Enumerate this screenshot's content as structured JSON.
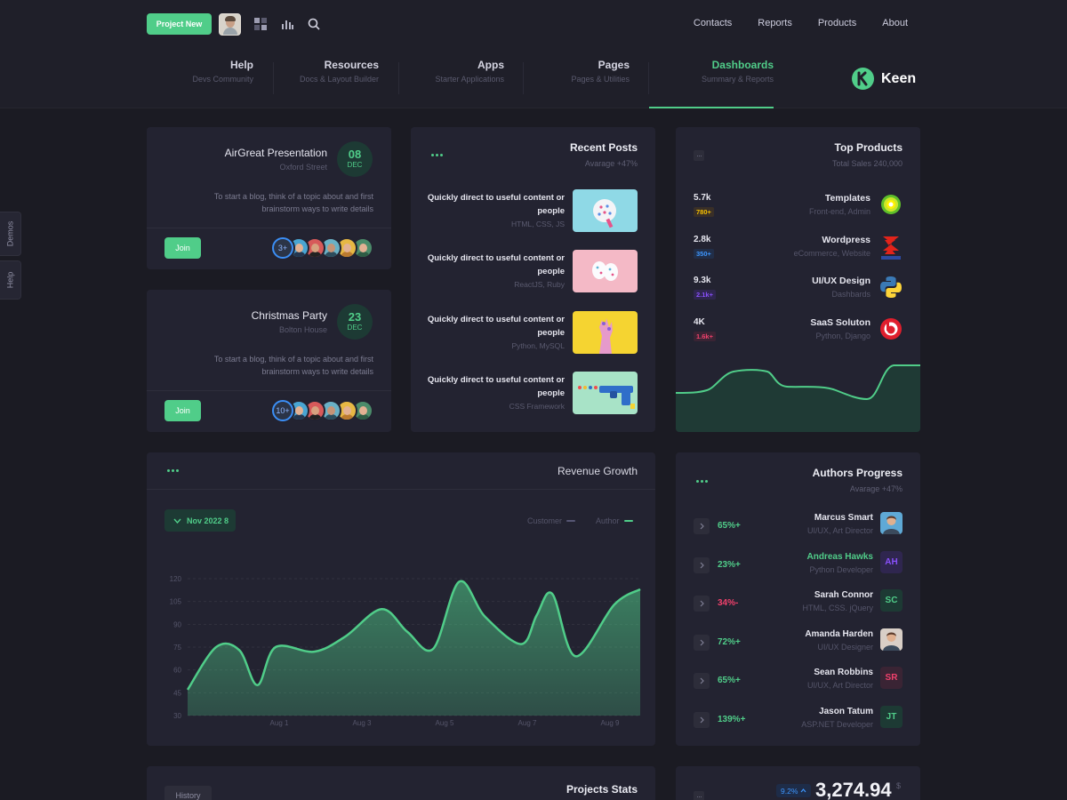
{
  "header": {
    "project_new": "Project New",
    "nav": [
      "Contacts",
      "Reports",
      "Products",
      "About"
    ],
    "menu": [
      {
        "title": "Help",
        "subtitle": "Devs Community"
      },
      {
        "title": "Resources",
        "subtitle": "Docs & Layout Builder"
      },
      {
        "title": "Apps",
        "subtitle": "Starter Applications"
      },
      {
        "title": "Pages",
        "subtitle": "Pages & Utilities"
      },
      {
        "title": "Dashboards",
        "subtitle": "Summary & Reports"
      }
    ],
    "active_menu": "Dashboards",
    "brand": "Keen"
  },
  "side_tabs": [
    "Demos",
    "Help"
  ],
  "events": [
    {
      "title": "AirGreat Presentation",
      "location": "Oxford Street",
      "day": "08",
      "month": "DEC",
      "description": "To start a blog, think of a topic about and first brainstorm ways to write details",
      "join": "Join",
      "count": "3+"
    },
    {
      "title": "Christmas Party",
      "location": "Bolton House",
      "day": "23",
      "month": "DEC",
      "description": "To start a blog, think of a topic about and first brainstorm ways to write details",
      "join": "Join",
      "count": "10+"
    }
  ],
  "recent_posts": {
    "title": "Recent Posts",
    "subtitle": "Avarage +47%",
    "posts": [
      {
        "title": "Quickly direct to useful content or people",
        "tags": "HTML, CSS, JS"
      },
      {
        "title": "Quickly direct to useful content or people",
        "tags": "ReactJS, Ruby"
      },
      {
        "title": "Quickly direct to useful content or people",
        "tags": "Python, MySQL"
      },
      {
        "title": "Quickly direct to useful content or people",
        "tags": "CSS Framework"
      }
    ]
  },
  "top_products": {
    "title": "Top Products",
    "subtitle": "Total Sales 240,000",
    "items": [
      {
        "value": "5.7k",
        "badge": "780+",
        "badge_color": "#f6c000",
        "badge_bg": "#392f28",
        "name": "Templates",
        "desc": "Front-end, Admin",
        "logo": "bp-logo"
      },
      {
        "value": "2.8k",
        "badge": "350+",
        "badge_color": "#3e97ff",
        "badge_bg": "#212e48",
        "name": "Wordpress",
        "desc": "eCommerce, Website",
        "logo": "suzuki-logo"
      },
      {
        "value": "9.3k",
        "badge": "2.1k+",
        "badge_color": "#8950fc",
        "badge_bg": "#2f264f",
        "name": "UI/UX Design",
        "desc": "Dashbards",
        "logo": "python-logo"
      },
      {
        "value": "4K",
        "badge": "1.6k+",
        "badge_color": "#f1416c",
        "badge_bg": "#3a2434",
        "name": "SaaS Soluton",
        "desc": "Python, Django",
        "logo": "beats-logo"
      }
    ]
  },
  "revenue": {
    "title": "Revenue Growth",
    "date_button": "Nov 2022 8",
    "legend": [
      {
        "name": "Customer",
        "color": "#565674"
      },
      {
        "name": "Author",
        "color": "#50cd89"
      }
    ]
  },
  "chart_data": {
    "type": "area",
    "title": "Revenue Growth",
    "x_ticks": [
      "Aug 1",
      "Aug 3",
      "Aug 5",
      "Aug 7",
      "Aug 9"
    ],
    "y_ticks": [
      30,
      45,
      60,
      75,
      90,
      105,
      120
    ],
    "ylim": [
      30,
      120
    ],
    "grid": true,
    "series": [
      {
        "name": "Author",
        "color": "#50cd89",
        "x": [
          0,
          0.55,
          1.0,
          1.35,
          1.7,
          2.45,
          3.05,
          3.75,
          4.25,
          4.75,
          5.25,
          5.75,
          6.45,
          6.75,
          7.05,
          7.5,
          8.25,
          8.75
        ],
        "values": [
          47,
          75,
          73,
          50,
          75,
          72,
          82,
          100,
          85,
          74,
          118,
          95,
          77,
          96,
          110,
          69,
          103,
          113
        ]
      }
    ]
  },
  "authors": {
    "title": "Authors Progress",
    "subtitle": "Avarage +47%",
    "items": [
      {
        "pct": "65%+",
        "pct_color": "#50cd89",
        "name": "Marcus Smart",
        "name_color": "#e6e6ef",
        "role": "UI/UX, Art Director",
        "avatar": "",
        "av_bg": "#5fa9d6",
        "av_color": "#ffffff",
        "photo": true
      },
      {
        "pct": "23%+",
        "pct_color": "#50cd89",
        "name": "Andreas Hawks",
        "name_color": "#50cd89",
        "role": "Python Developer",
        "avatar": "AH",
        "av_bg": "#2f264f",
        "av_color": "#8950fc",
        "photo": false
      },
      {
        "pct": "34%-",
        "pct_color": "#f1416c",
        "name": "Sarah Connor",
        "name_color": "#e6e6ef",
        "role": "HTML, CSS. jQuery",
        "avatar": "SC",
        "av_bg": "#1d3a34",
        "av_color": "#50cd89",
        "photo": false
      },
      {
        "pct": "72%+",
        "pct_color": "#50cd89",
        "name": "Amanda Harden",
        "name_color": "#e6e6ef",
        "role": "UI/UX Designer",
        "avatar": "",
        "av_bg": "#d9cfc7",
        "av_color": "#ffffff",
        "photo": true
      },
      {
        "pct": "65%+",
        "pct_color": "#50cd89",
        "name": "Sean Robbins",
        "name_color": "#e6e6ef",
        "role": "UI/UX, Art Director",
        "avatar": "SR",
        "av_bg": "#3a2434",
        "av_color": "#f1416c",
        "photo": false
      },
      {
        "pct": "139%+",
        "pct_color": "#50cd89",
        "name": "Jason Tatum",
        "name_color": "#e6e6ef",
        "role": "ASP.NET Developer",
        "avatar": "JT",
        "av_bg": "#1d3a34",
        "av_color": "#50cd89",
        "photo": false
      }
    ]
  },
  "projects_stats": {
    "title": "Projects Stats",
    "history": "History"
  },
  "summary": {
    "badge": "9.2%",
    "value": "3,274.94",
    "currency": "$"
  }
}
